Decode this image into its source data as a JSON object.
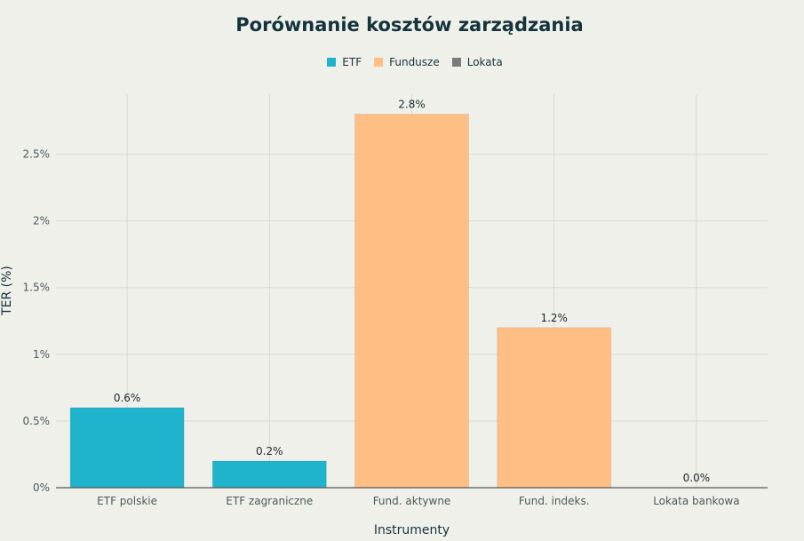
{
  "chart_data": {
    "type": "bar",
    "title": "Porównanie kosztów zarządzania",
    "xlabel": "Instrumenty",
    "ylabel": "TER (%)",
    "ylim": [
      0,
      2.95
    ],
    "yticks": [
      0,
      0.5,
      1,
      1.5,
      2,
      2.5
    ],
    "ytick_labels": [
      "0%",
      "0.5%",
      "1%",
      "1.5%",
      "2%",
      "2.5%"
    ],
    "grid": true,
    "legend_position": "top-center",
    "legend": [
      {
        "label": "ETF",
        "color": "#1fb4cc"
      },
      {
        "label": "Fundusze",
        "color": "#ffbe84"
      },
      {
        "label": "Lokata",
        "color": "#7a7a7a"
      }
    ],
    "categories": [
      "ETF polskie",
      "ETF zagraniczne",
      "Fund. aktywne",
      "Fund. indeks.",
      "Lokata bankowa"
    ],
    "values": [
      0.6,
      0.2,
      2.8,
      1.2,
      0.0
    ],
    "data_labels": [
      "0.6%",
      "0.2%",
      "2.8%",
      "1.2%",
      "0.0%"
    ],
    "bar_groups": [
      "ETF",
      "ETF",
      "Fundusze",
      "Fundusze",
      "Lokata"
    ]
  }
}
